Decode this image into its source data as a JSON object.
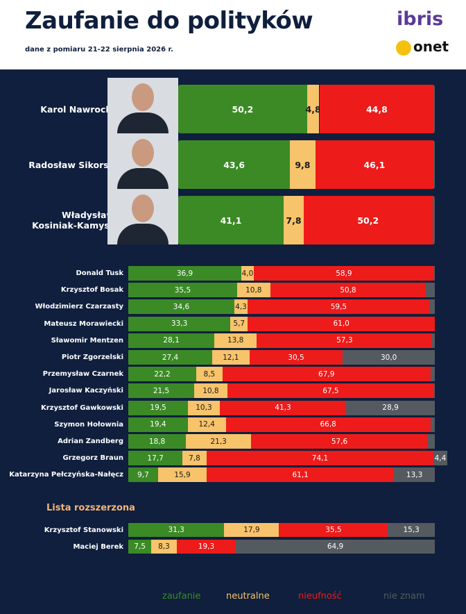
{
  "chart_data": {
    "type": "stacked-bar",
    "title": "Zaufanie do polityków",
    "subtitle": "dane z pomiaru 21-22 sierpnia 2026 r.",
    "brands": [
      "ibris",
      "onet"
    ],
    "section_label": "Lista rozszerzona",
    "xlim": [
      0,
      100
    ],
    "categories": [
      "Karol Nawrocki",
      "Radosław Sikorsk",
      "Władysław Kosiniak-Kamysz",
      "Donald Tusk",
      "Krzysztof Bosak",
      "Włodzimierz Czarzasty",
      "Mateusz Morawiecki",
      "Sławomir Mentzen",
      "Piotr Zgorzelski",
      "Przemysław Czarnek",
      "Jarosław Kaczyński",
      "Krzysztof Gawkowski",
      "Szymon Hołownia",
      "Adrian Zandberg",
      "Grzegorz Braun",
      "Katarzyna Pełczyńska-Nałęcz",
      "Krzysztof Stanowski",
      "Maciej Berek"
    ],
    "series": [
      {
        "name": "zaufanie",
        "color": "#3b8a26",
        "values": [
          50.2,
          43.6,
          41.1,
          36.9,
          35.5,
          34.6,
          33.3,
          28.1,
          27.4,
          22.2,
          21.5,
          19.5,
          19.4,
          18.8,
          17.7,
          9.7,
          31.3,
          7.5
        ],
        "value_labels": [
          "50,2",
          "43,6",
          "41,1",
          "36,9",
          "35,5",
          "34,6",
          "33,3",
          "28,1",
          "27,4",
          "22,2",
          "21,5",
          "19,5",
          "19,4",
          "18,8",
          "17,7",
          "9,7",
          "31,3",
          "7,5"
        ]
      },
      {
        "name": "neutralne",
        "color": "#f7c36b",
        "values": [
          4.8,
          9.8,
          7.8,
          4.0,
          10.8,
          4.3,
          5.7,
          13.8,
          12.1,
          8.5,
          10.8,
          10.3,
          12.4,
          21.3,
          7.8,
          15.9,
          17.9,
          8.3
        ],
        "value_labels": [
          "4,8",
          "9,8",
          "7,8",
          "4,0",
          "10,8",
          "4,3",
          "5,7",
          "13,8",
          "12,1",
          "8,5",
          "10,8",
          "10,3",
          "12,4",
          "21,3",
          "7,8",
          "15,9",
          "17,9",
          "8,3"
        ]
      },
      {
        "name": "nieufność",
        "color": "#ee1b1b",
        "values": [
          44.8,
          46.1,
          50.2,
          58.9,
          50.8,
          59.5,
          61.0,
          57.3,
          30.5,
          67.9,
          67.5,
          41.3,
          66.8,
          57.6,
          74.1,
          61.1,
          35.5,
          19.3
        ],
        "value_labels": [
          "44,8",
          "46,1",
          "50,2",
          "58,9",
          "50,8",
          "59,5",
          "61,0",
          "57,3",
          "30,5",
          "67,9",
          "67,5",
          "41,3",
          "66,8",
          "57,6",
          "74,1",
          "61,1",
          "35,5",
          "19,3"
        ]
      },
      {
        "name": "nie znam",
        "color": "#555a60",
        "values": [
          0.2,
          0.5,
          0.9,
          0.2,
          2.9,
          1.6,
          0,
          0.8,
          30.0,
          1.4,
          0.2,
          28.9,
          1.4,
          2.3,
          4.4,
          13.3,
          15.3,
          64.9
        ],
        "value_labels": [
          null,
          null,
          null,
          null,
          null,
          null,
          null,
          null,
          "30,0",
          null,
          null,
          "28,9",
          null,
          null,
          "4,4",
          "13,3",
          "15,3",
          "64,9"
        ]
      }
    ]
  }
}
